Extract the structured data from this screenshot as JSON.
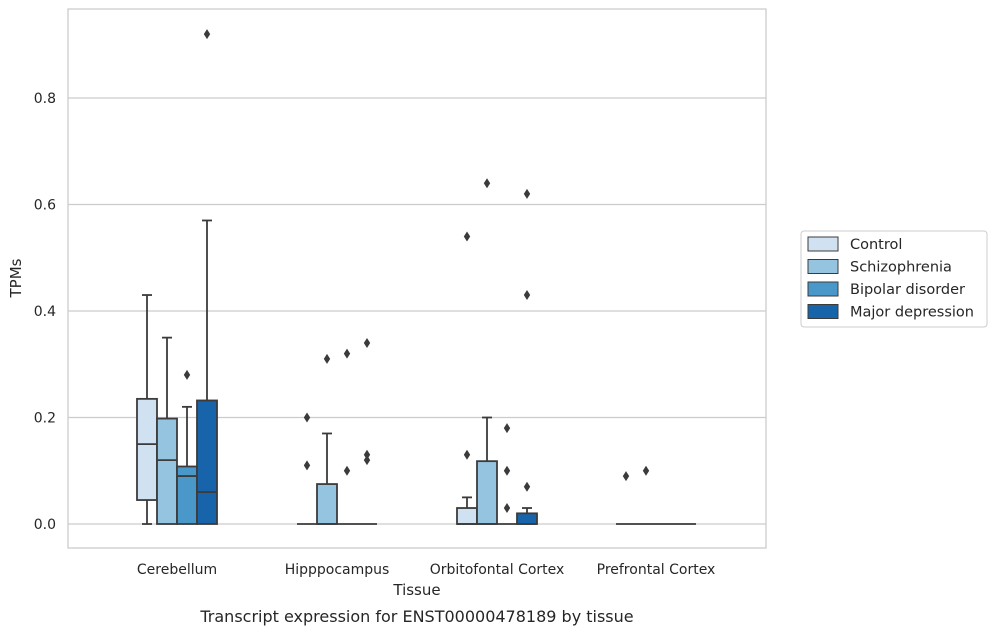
{
  "chart_data": {
    "type": "box",
    "title": "",
    "caption": "Transcript expression for ENST00000478189 by tissue",
    "xlabel": "Tissue",
    "ylabel": "TPMs",
    "ylim": [
      -0.045,
      0.97
    ],
    "yticks": [
      0.0,
      0.2,
      0.4,
      0.6,
      0.8
    ],
    "ytick_labels": [
      "0.0",
      "0.2",
      "0.4",
      "0.6",
      "0.8"
    ],
    "grid": "horizontal",
    "legend_position": "right",
    "categories": [
      "Cerebellum",
      "Hipppocampus",
      "Orbitofontal Cortex",
      "Prefrontal Cortex"
    ],
    "series": [
      {
        "name": "Control",
        "color": "#d0e1f2",
        "boxes": [
          {
            "q1": 0.045,
            "median": 0.15,
            "q3": 0.235,
            "whisker_low": 0.0,
            "whisker_high": 0.43,
            "outliers": []
          },
          {
            "q1": 0.0,
            "median": 0.0,
            "q3": 0.0,
            "whisker_low": 0.0,
            "whisker_high": 0.0,
            "outliers": [
              0.2,
              0.11
            ]
          },
          {
            "q1": 0.0,
            "median": 0.0,
            "q3": 0.03,
            "whisker_low": 0.0,
            "whisker_high": 0.05,
            "outliers": [
              0.54,
              0.13
            ]
          },
          {
            "q1": 0.0,
            "median": 0.0,
            "q3": 0.0,
            "whisker_low": 0.0,
            "whisker_high": 0.0,
            "outliers": [
              0.09
            ]
          }
        ]
      },
      {
        "name": "Schizophrenia",
        "color": "#94c4df",
        "boxes": [
          {
            "q1": 0.0,
            "median": 0.12,
            "q3": 0.198,
            "whisker_low": 0.0,
            "whisker_high": 0.35,
            "outliers": []
          },
          {
            "q1": 0.0,
            "median": 0.0,
            "q3": 0.075,
            "whisker_low": 0.0,
            "whisker_high": 0.17,
            "outliers": [
              0.31
            ]
          },
          {
            "q1": 0.0,
            "median": 0.0,
            "q3": 0.118,
            "whisker_low": 0.0,
            "whisker_high": 0.2,
            "outliers": [
              0.64
            ]
          },
          {
            "q1": 0.0,
            "median": 0.0,
            "q3": 0.0,
            "whisker_low": 0.0,
            "whisker_high": 0.0,
            "outliers": [
              0.1
            ]
          }
        ]
      },
      {
        "name": "Bipolar disorder",
        "color": "#4a98c9",
        "boxes": [
          {
            "q1": 0.0,
            "median": 0.09,
            "q3": 0.108,
            "whisker_low": 0.0,
            "whisker_high": 0.22,
            "outliers": [
              0.28
            ]
          },
          {
            "q1": 0.0,
            "median": 0.0,
            "q3": 0.0,
            "whisker_low": 0.0,
            "whisker_high": 0.0,
            "outliers": [
              0.32,
              0.1
            ]
          },
          {
            "q1": 0.0,
            "median": 0.0,
            "q3": 0.0,
            "whisker_low": 0.0,
            "whisker_high": 0.0,
            "outliers": [
              0.18,
              0.1,
              0.03
            ]
          },
          {
            "q1": 0.0,
            "median": 0.0,
            "q3": 0.0,
            "whisker_low": 0.0,
            "whisker_high": 0.0,
            "outliers": []
          }
        ]
      },
      {
        "name": "Major depression",
        "color": "#1764ab",
        "boxes": [
          {
            "q1": 0.0,
            "median": 0.06,
            "q3": 0.232,
            "whisker_low": 0.0,
            "whisker_high": 0.57,
            "outliers": [
              0.92
            ]
          },
          {
            "q1": 0.0,
            "median": 0.0,
            "q3": 0.0,
            "whisker_low": 0.0,
            "whisker_high": 0.0,
            "outliers": [
              0.34,
              0.13,
              0.12
            ]
          },
          {
            "q1": 0.0,
            "median": 0.0,
            "q3": 0.02,
            "whisker_low": 0.0,
            "whisker_high": 0.03,
            "outliers": [
              0.62,
              0.43,
              0.07
            ]
          },
          {
            "q1": 0.0,
            "median": 0.0,
            "q3": 0.0,
            "whisker_low": 0.0,
            "whisker_high": 0.0,
            "outliers": []
          }
        ]
      }
    ]
  }
}
